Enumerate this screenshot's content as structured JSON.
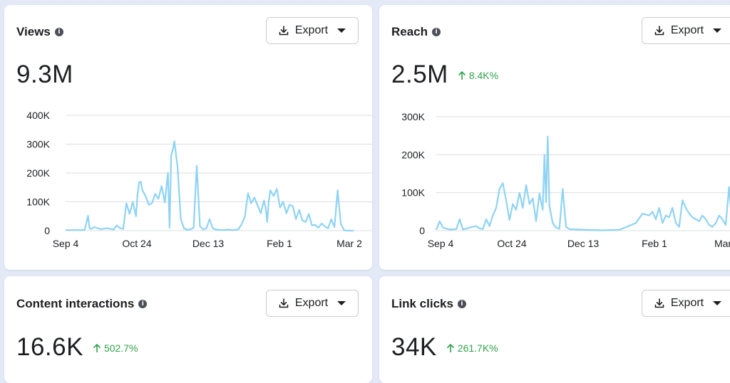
{
  "cards": {
    "views": {
      "title": "Views",
      "value": "9.3M",
      "export_label": "Export"
    },
    "reach": {
      "title": "Reach",
      "value": "2.5M",
      "change": "8.4K%",
      "export_label": "Export"
    },
    "content_interactions": {
      "title": "Content interactions",
      "value": "16.6K",
      "change": "502.7%",
      "export_label": "Export"
    },
    "link_clicks": {
      "title": "Link clicks",
      "value": "34K",
      "change": "261.7K%",
      "export_label": "Export"
    }
  },
  "colors": {
    "line": "#8fd3f4",
    "positive": "#31a24c",
    "grid": "#dadde1"
  },
  "chart_data": [
    {
      "type": "line",
      "title": "Views",
      "x_tick_labels": [
        "Sep 4",
        "Oct 24",
        "Dec 13",
        "Feb 1",
        "Mar 2"
      ],
      "y_tick_labels": [
        "0",
        "100K",
        "200K",
        "300K",
        "400K"
      ],
      "ylim": [
        0,
        400000
      ],
      "x_range_days": [
        0,
        180
      ],
      "grid": true,
      "series": [
        {
          "x": [
            0,
            4,
            8,
            12,
            14,
            15,
            16,
            18,
            22,
            26,
            30,
            32,
            34,
            36,
            38,
            40,
            42,
            44,
            45,
            46,
            47,
            48,
            50,
            52,
            54,
            56,
            58,
            60,
            62,
            64,
            65,
            66,
            67,
            68,
            70,
            72,
            74,
            76,
            78,
            80,
            82,
            84,
            86,
            88,
            90,
            92,
            94,
            96,
            98,
            100,
            102,
            104,
            106,
            108,
            110,
            112,
            114,
            116,
            118,
            120,
            122,
            124,
            125,
            126,
            127,
            128,
            130,
            132,
            134,
            136,
            138,
            140,
            142,
            144,
            146,
            148,
            150,
            152,
            154,
            156,
            158,
            160,
            162,
            164,
            166,
            168,
            170,
            172,
            174,
            176,
            177,
            178,
            180
          ],
          "values": [
            2000,
            2000,
            2000,
            3000,
            52000,
            8000,
            6000,
            12000,
            5000,
            9000,
            4000,
            18000,
            9000,
            6000,
            95000,
            58000,
            100000,
            50000,
            127000,
            168000,
            170000,
            140000,
            120000,
            90000,
            95000,
            128000,
            110000,
            155000,
            98000,
            200000,
            10000,
            260000,
            280000,
            310000,
            220000,
            40000,
            8000,
            3000,
            5000,
            10000,
            225000,
            15000,
            4000,
            8000,
            40000,
            8000,
            4000,
            3000,
            2000,
            3000,
            4000,
            2000,
            3000,
            5000,
            22000,
            48000,
            130000,
            95000,
            115000,
            88000,
            60000,
            105000,
            80000,
            30000,
            102000,
            140000,
            120000,
            145000,
            80000,
            100000,
            60000,
            90000,
            85000,
            40000,
            72000,
            35000,
            30000,
            58000,
            18000,
            20000,
            10000,
            25000,
            15000,
            8000,
            40000,
            12000,
            140000,
            25000,
            2000,
            0,
            0,
            0,
            0
          ]
        }
      ]
    },
    {
      "type": "line",
      "title": "Reach",
      "x_tick_labels": [
        "Sep 4",
        "Oct 24",
        "Dec 13",
        "Feb 1",
        "Mar"
      ],
      "y_tick_labels": [
        "0",
        "100K",
        "200K",
        "300K"
      ],
      "ylim": [
        0,
        300000
      ],
      "x_range_days": [
        0,
        180
      ],
      "grid": true,
      "series": [
        {
          "x": [
            0,
            2,
            4,
            8,
            12,
            14,
            16,
            18,
            20,
            24,
            26,
            28,
            30,
            32,
            34,
            36,
            38,
            40,
            42,
            44,
            46,
            48,
            50,
            52,
            54,
            56,
            58,
            60,
            62,
            64,
            65,
            66,
            67,
            68,
            70,
            72,
            74,
            76,
            78,
            80,
            90,
            100,
            110,
            120,
            124,
            128,
            130,
            132,
            134,
            136,
            138,
            140,
            142,
            144,
            146,
            148,
            150,
            152,
            154,
            156,
            158,
            160,
            162,
            164,
            166,
            168,
            170,
            172,
            174,
            176,
            178,
            180
          ],
          "values": [
            2000,
            25000,
            8000,
            3000,
            4000,
            30000,
            3000,
            5000,
            8000,
            12000,
            6000,
            4000,
            30000,
            12000,
            40000,
            60000,
            110000,
            125000,
            80000,
            28000,
            70000,
            55000,
            100000,
            60000,
            120000,
            70000,
            85000,
            25000,
            98000,
            55000,
            200000,
            75000,
            248000,
            65000,
            20000,
            8000,
            5000,
            110000,
            10000,
            4000,
            2000,
            1000,
            2000,
            20000,
            45000,
            40000,
            50000,
            30000,
            60000,
            20000,
            40000,
            35000,
            60000,
            20000,
            10000,
            80000,
            60000,
            45000,
            35000,
            30000,
            25000,
            40000,
            30000,
            15000,
            10000,
            20000,
            40000,
            30000,
            15000,
            115000,
            10000,
            0
          ]
        }
      ]
    }
  ]
}
